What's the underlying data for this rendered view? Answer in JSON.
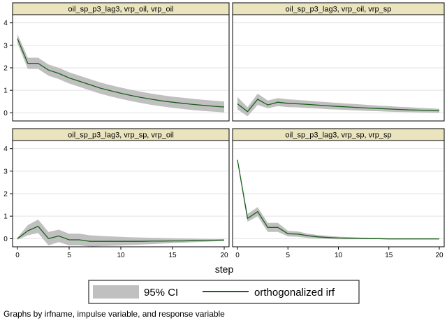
{
  "chart_data": {
    "type": "line",
    "layout": "2x2 facet grid",
    "xlabel": "step",
    "x_ticks": [
      0,
      5,
      10,
      15,
      20
    ],
    "y_ticks": [
      0,
      1,
      2,
      3,
      4
    ],
    "xlim": [
      0,
      20
    ],
    "ylim": [
      -0.3,
      4.3
    ],
    "grid": "horizontal",
    "legend": {
      "placement": "bottom",
      "ci_label": "95% CI",
      "irf_label": "orthogonalized irf"
    },
    "note": "Graphs by irfname, impulse variable, and response variable",
    "colors": {
      "ci": "#c0c0c0",
      "irf": "#1b5e1b",
      "strip": "#eae5bf"
    },
    "x": [
      0,
      1,
      2,
      3,
      4,
      5,
      6,
      7,
      8,
      9,
      10,
      11,
      12,
      13,
      14,
      15,
      16,
      17,
      18,
      19,
      20
    ],
    "panels": [
      {
        "title": "oil_sp_p3_lag3, vrp_oil, vrp_oil",
        "irf": [
          3.3,
          2.2,
          2.2,
          1.9,
          1.75,
          1.55,
          1.4,
          1.25,
          1.1,
          0.98,
          0.87,
          0.77,
          0.68,
          0.6,
          0.53,
          0.47,
          0.42,
          0.37,
          0.33,
          0.29,
          0.26
        ],
        "lower": [
          3.1,
          1.95,
          1.95,
          1.65,
          1.5,
          1.3,
          1.15,
          1.0,
          0.85,
          0.73,
          0.62,
          0.52,
          0.43,
          0.35,
          0.28,
          0.22,
          0.17,
          0.12,
          0.08,
          0.05,
          0.02
        ],
        "upper": [
          3.5,
          2.45,
          2.45,
          2.15,
          2.0,
          1.8,
          1.65,
          1.5,
          1.35,
          1.23,
          1.12,
          1.02,
          0.93,
          0.85,
          0.78,
          0.72,
          0.67,
          0.62,
          0.58,
          0.54,
          0.5
        ]
      },
      {
        "title": "oil_sp_p3_lag3, vrp_oil, vrp_sp",
        "irf": [
          0.4,
          0.05,
          0.6,
          0.35,
          0.47,
          0.42,
          0.4,
          0.37,
          0.34,
          0.31,
          0.28,
          0.26,
          0.23,
          0.21,
          0.19,
          0.17,
          0.15,
          0.13,
          0.12,
          0.1,
          0.09
        ],
        "lower": [
          0.15,
          -0.15,
          0.35,
          0.2,
          0.3,
          0.25,
          0.24,
          0.21,
          0.19,
          0.16,
          0.14,
          0.12,
          0.1,
          0.08,
          0.07,
          0.05,
          0.04,
          0.03,
          0.02,
          0.01,
          0.0
        ],
        "upper": [
          0.7,
          0.25,
          0.85,
          0.55,
          0.65,
          0.6,
          0.57,
          0.54,
          0.5,
          0.47,
          0.44,
          0.41,
          0.38,
          0.35,
          0.32,
          0.3,
          0.27,
          0.25,
          0.22,
          0.2,
          0.18
        ]
      },
      {
        "title": "oil_sp_p3_lag3, vrp_sp, vrp_oil",
        "irf": [
          0.0,
          0.35,
          0.55,
          0.0,
          0.12,
          -0.05,
          -0.05,
          -0.12,
          -0.12,
          -0.12,
          -0.12,
          -0.12,
          -0.12,
          -0.11,
          -0.11,
          -0.1,
          -0.1,
          -0.09,
          -0.08,
          -0.07,
          -0.06
        ],
        "lower": [
          -0.05,
          0.15,
          0.25,
          -0.3,
          -0.15,
          -0.3,
          -0.3,
          -0.35,
          -0.33,
          -0.32,
          -0.3,
          -0.28,
          -0.26,
          -0.24,
          -0.22,
          -0.2,
          -0.18,
          -0.16,
          -0.14,
          -0.12,
          -0.1
        ],
        "upper": [
          0.05,
          0.6,
          0.85,
          0.3,
          0.4,
          0.22,
          0.22,
          0.15,
          0.12,
          0.1,
          0.08,
          0.06,
          0.05,
          0.04,
          0.03,
          0.02,
          0.01,
          0.0,
          -0.01,
          -0.02,
          -0.03
        ]
      },
      {
        "title": "oil_sp_p3_lag3, vrp_sp, vrp_sp",
        "irf": [
          3.5,
          0.9,
          1.2,
          0.5,
          0.5,
          0.22,
          0.2,
          0.13,
          0.08,
          0.05,
          0.03,
          0.02,
          0.01,
          0.0,
          0.0,
          -0.01,
          -0.01,
          -0.01,
          -0.01,
          -0.01,
          -0.01
        ],
        "lower": [
          3.45,
          0.75,
          1.0,
          0.3,
          0.3,
          0.1,
          0.08,
          0.03,
          0.0,
          -0.02,
          -0.03,
          -0.03,
          -0.03,
          -0.03,
          -0.03,
          -0.03,
          -0.03,
          -0.03,
          -0.03,
          -0.03,
          -0.03
        ],
        "upper": [
          3.55,
          1.1,
          1.4,
          0.7,
          0.7,
          0.35,
          0.32,
          0.22,
          0.16,
          0.12,
          0.09,
          0.07,
          0.05,
          0.03,
          0.02,
          0.01,
          0.01,
          0.01,
          0.01,
          0.01,
          0.01
        ]
      }
    ]
  }
}
